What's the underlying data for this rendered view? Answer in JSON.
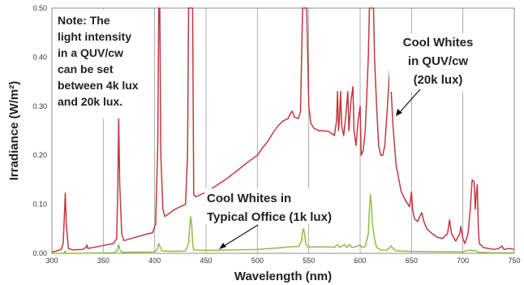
{
  "chart_data": {
    "type": "line",
    "xlabel": "Wavelength (nm)",
    "ylabel": "Irradiance (W/m²)",
    "xlim": [
      300,
      750
    ],
    "ylim": [
      0,
      0.5
    ],
    "x_ticks": [
      "300",
      "350",
      "400",
      "450",
      "500",
      "550",
      "600",
      "650",
      "700",
      "750"
    ],
    "y_ticks": [
      "0.00",
      "0.10",
      "0.20",
      "0.30",
      "0.40",
      "0.50"
    ],
    "grid": "vertical",
    "note_lines": [
      "Note: The",
      "light intensity",
      "in a QUV/cw",
      "can be set",
      "between 4k lux",
      "and 20k lux."
    ],
    "series": [
      {
        "color": "#c0393f",
        "annotation": [
          "Cool Whites",
          "in QUV/cw",
          "(20k lux)"
        ],
        "annotation_target": [
          631,
          0.295
        ],
        "points": [
          [
            300,
            0.003
          ],
          [
            303,
            0.004
          ],
          [
            306,
            0.006
          ],
          [
            309,
            0.008
          ],
          [
            311,
            0.02
          ],
          [
            312,
            0.07
          ],
          [
            313,
            0.123
          ],
          [
            314,
            0.06
          ],
          [
            316,
            0.01
          ],
          [
            320,
            0.007
          ],
          [
            330,
            0.008
          ],
          [
            333,
            0.012
          ],
          [
            334,
            0.017
          ],
          [
            335,
            0.01
          ],
          [
            340,
            0.012
          ],
          [
            350,
            0.016
          ],
          [
            360,
            0.02
          ],
          [
            363,
            0.03
          ],
          [
            364,
            0.12
          ],
          [
            365,
            0.28
          ],
          [
            366,
            0.14
          ],
          [
            368,
            0.04
          ],
          [
            370,
            0.026
          ],
          [
            380,
            0.032
          ],
          [
            390,
            0.038
          ],
          [
            398,
            0.042
          ],
          [
            401,
            0.06
          ],
          [
            403,
            0.22
          ],
          [
            404,
            0.5
          ],
          [
            405,
            0.5
          ],
          [
            406,
            0.2
          ],
          [
            408,
            0.09
          ],
          [
            410,
            0.075
          ],
          [
            420,
            0.09
          ],
          [
            430,
            0.1
          ],
          [
            432,
            0.2
          ],
          [
            433,
            0.5
          ],
          [
            437,
            0.5
          ],
          [
            438,
            0.12
          ],
          [
            440,
            0.115
          ],
          [
            450,
            0.125
          ],
          [
            460,
            0.138
          ],
          [
            470,
            0.152
          ],
          [
            480,
            0.168
          ],
          [
            490,
            0.185
          ],
          [
            500,
            0.2
          ],
          [
            505,
            0.215
          ],
          [
            510,
            0.228
          ],
          [
            515,
            0.245
          ],
          [
            520,
            0.26
          ],
          [
            525,
            0.27
          ],
          [
            530,
            0.275
          ],
          [
            532,
            0.285
          ],
          [
            534,
            0.29
          ],
          [
            536,
            0.278
          ],
          [
            540,
            0.275
          ],
          [
            542,
            0.29
          ],
          [
            543,
            0.4
          ],
          [
            544,
            0.5
          ],
          [
            548,
            0.5
          ],
          [
            549,
            0.4
          ],
          [
            550,
            0.3
          ],
          [
            552,
            0.265
          ],
          [
            555,
            0.255
          ],
          [
            560,
            0.25
          ],
          [
            565,
            0.25
          ],
          [
            570,
            0.248
          ],
          [
            575,
            0.24
          ],
          [
            577,
            0.27
          ],
          [
            578,
            0.33
          ],
          [
            579,
            0.25
          ],
          [
            580,
            0.28
          ],
          [
            581,
            0.33
          ],
          [
            582,
            0.26
          ],
          [
            584,
            0.24
          ],
          [
            586,
            0.28
          ],
          [
            588,
            0.33
          ],
          [
            589,
            0.25
          ],
          [
            591,
            0.31
          ],
          [
            593,
            0.34
          ],
          [
            594,
            0.25
          ],
          [
            596,
            0.22
          ],
          [
            598,
            0.27
          ],
          [
            600,
            0.3
          ],
          [
            601,
            0.2
          ],
          [
            603,
            0.21
          ],
          [
            605,
            0.25
          ],
          [
            606,
            0.3
          ],
          [
            608,
            0.4
          ],
          [
            609,
            0.5
          ],
          [
            613,
            0.5
          ],
          [
            614,
            0.4
          ],
          [
            616,
            0.3
          ],
          [
            618,
            0.22
          ],
          [
            620,
            0.2
          ],
          [
            622,
            0.2
          ],
          [
            624,
            0.22
          ],
          [
            626,
            0.28
          ],
          [
            628,
            0.35
          ],
          [
            629,
            0.375
          ],
          [
            630,
            0.34
          ],
          [
            632,
            0.26
          ],
          [
            635,
            0.18
          ],
          [
            640,
            0.125
          ],
          [
            645,
            0.105
          ],
          [
            648,
            0.095
          ],
          [
            649,
            0.11
          ],
          [
            650,
            0.125
          ],
          [
            651,
            0.09
          ],
          [
            653,
            0.07
          ],
          [
            656,
            0.065
          ],
          [
            658,
            0.075
          ],
          [
            660,
            0.083
          ],
          [
            662,
            0.065
          ],
          [
            665,
            0.05
          ],
          [
            670,
            0.04
          ],
          [
            675,
            0.033
          ],
          [
            680,
            0.03
          ],
          [
            685,
            0.04
          ],
          [
            687,
            0.068
          ],
          [
            689,
            0.04
          ],
          [
            693,
            0.025
          ],
          [
            697,
            0.04
          ],
          [
            698,
            0.055
          ],
          [
            700,
            0.03
          ],
          [
            702,
            0.02
          ],
          [
            705,
            0.04
          ],
          [
            707,
            0.085
          ],
          [
            709,
            0.15
          ],
          [
            711,
            0.145
          ],
          [
            712,
            0.09
          ],
          [
            713,
            0.12
          ],
          [
            714,
            0.14
          ],
          [
            715,
            0.05
          ],
          [
            716,
            0.02
          ],
          [
            720,
            0.012
          ],
          [
            725,
            0.01
          ],
          [
            730,
            0.008
          ],
          [
            735,
            0.01
          ],
          [
            738,
            0.015
          ],
          [
            740,
            0.008
          ],
          [
            745,
            0.01
          ],
          [
            750,
            0.008
          ]
        ]
      },
      {
        "color": "#8fbf3f",
        "annotation": [
          "Cool Whites in",
          "Typical Office (1k lux)"
        ],
        "annotation_target": [
          452,
          0.005
        ],
        "points": [
          [
            300,
            0.0
          ],
          [
            312,
            0.0
          ],
          [
            313,
            0.005
          ],
          [
            314,
            0.0
          ],
          [
            360,
            0.001
          ],
          [
            363,
            0.004
          ],
          [
            364,
            0.01
          ],
          [
            365,
            0.018
          ],
          [
            366,
            0.008
          ],
          [
            368,
            0.002
          ],
          [
            400,
            0.003
          ],
          [
            402,
            0.006
          ],
          [
            403,
            0.012
          ],
          [
            404,
            0.02
          ],
          [
            405,
            0.015
          ],
          [
            407,
            0.005
          ],
          [
            420,
            0.004
          ],
          [
            430,
            0.005
          ],
          [
            433,
            0.02
          ],
          [
            434,
            0.05
          ],
          [
            435,
            0.075
          ],
          [
            436,
            0.06
          ],
          [
            437,
            0.02
          ],
          [
            438,
            0.007
          ],
          [
            450,
            0.006
          ],
          [
            480,
            0.007
          ],
          [
            500,
            0.008
          ],
          [
            520,
            0.011
          ],
          [
            530,
            0.013
          ],
          [
            540,
            0.014
          ],
          [
            543,
            0.025
          ],
          [
            544,
            0.045
          ],
          [
            545,
            0.05
          ],
          [
            546,
            0.04
          ],
          [
            547,
            0.02
          ],
          [
            549,
            0.013
          ],
          [
            560,
            0.013
          ],
          [
            570,
            0.013
          ],
          [
            575,
            0.012
          ],
          [
            578,
            0.018
          ],
          [
            580,
            0.012
          ],
          [
            585,
            0.018
          ],
          [
            587,
            0.012
          ],
          [
            590,
            0.018
          ],
          [
            592,
            0.012
          ],
          [
            595,
            0.013
          ],
          [
            600,
            0.017
          ],
          [
            602,
            0.012
          ],
          [
            605,
            0.014
          ],
          [
            608,
            0.04
          ],
          [
            609,
            0.09
          ],
          [
            610,
            0.12
          ],
          [
            611,
            0.1
          ],
          [
            612,
            0.06
          ],
          [
            614,
            0.03
          ],
          [
            616,
            0.012
          ],
          [
            620,
            0.007
          ],
          [
            625,
            0.006
          ],
          [
            628,
            0.01
          ],
          [
            630,
            0.015
          ],
          [
            632,
            0.01
          ],
          [
            635,
            0.005
          ],
          [
            650,
            0.004
          ],
          [
            700,
            0.003
          ],
          [
            707,
            0.007
          ],
          [
            710,
            0.005
          ],
          [
            712,
            0.006
          ],
          [
            715,
            0.002
          ],
          [
            730,
            0.001
          ],
          [
            750,
            0.001
          ]
        ]
      }
    ]
  }
}
